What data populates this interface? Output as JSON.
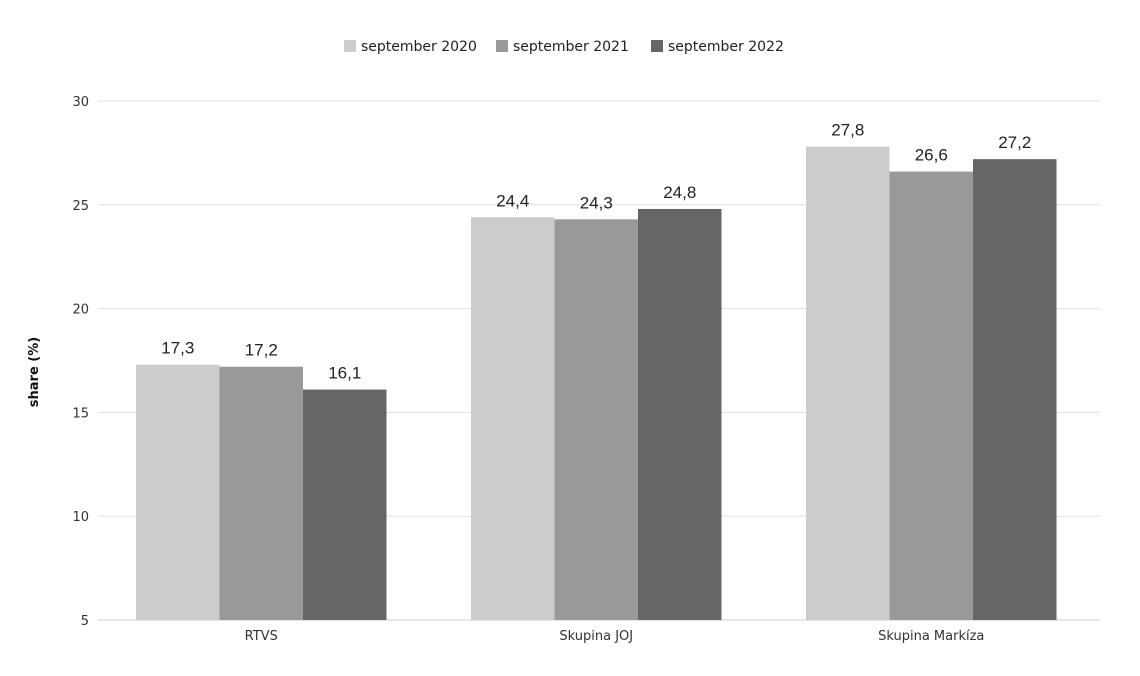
{
  "chart_data": {
    "type": "bar",
    "title": "",
    "xlabel": "",
    "ylabel": "share (%)",
    "ylim": [
      5,
      30
    ],
    "yticks": [
      5,
      10,
      15,
      20,
      25,
      30
    ],
    "grid": true,
    "legend_position": "top-center",
    "categories": [
      "RTVS",
      "Skupina JOJ",
      "Skupina Markíza"
    ],
    "series": [
      {
        "name": "september 2020",
        "color": "#cccccc",
        "values": [
          17.3,
          24.4,
          27.8
        ],
        "labels": [
          "17,3",
          "24,4",
          "27,8"
        ]
      },
      {
        "name": "september 2021",
        "color": "#999999",
        "values": [
          17.2,
          24.3,
          26.6
        ],
        "labels": [
          "17,2",
          "24,3",
          "26,6"
        ]
      },
      {
        "name": "september 2022",
        "color": "#666666",
        "values": [
          16.1,
          24.8,
          27.2
        ],
        "labels": [
          "16,1",
          "24,8",
          "27,2"
        ]
      }
    ]
  }
}
